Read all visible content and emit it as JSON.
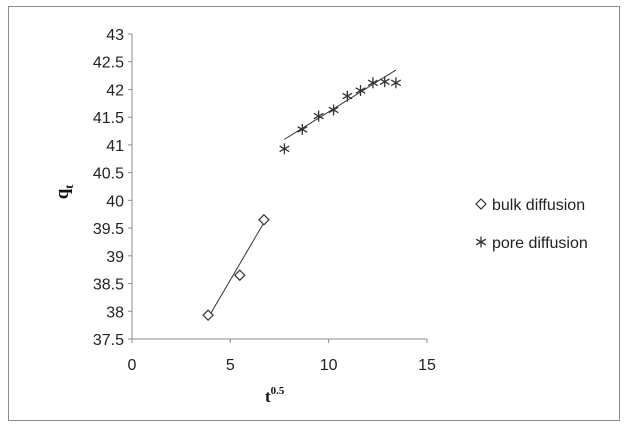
{
  "chart_data": {
    "type": "scatter",
    "xlabel": "t",
    "xlabel_superscript": "0.5",
    "ylabel": "q",
    "ylabel_subscript": "t",
    "xlim": [
      0,
      15
    ],
    "ylim": [
      37.5,
      43
    ],
    "x_ticks": [
      "0",
      "5",
      "10",
      "15"
    ],
    "y_ticks": [
      "37.5",
      "38",
      "38.5",
      "39",
      "39.5",
      "40",
      "40.5",
      "41",
      "41.5",
      "42",
      "42.5",
      "43"
    ],
    "grid": false,
    "legend_position": "right",
    "series": [
      {
        "name": "bulk diffusion",
        "marker": "diamond",
        "x": [
          3.87,
          5.48,
          6.71
        ],
        "y": [
          37.93,
          38.65,
          39.65
        ],
        "trendline": [
          [
            3.87,
            37.88
          ],
          [
            6.71,
            39.6
          ]
        ]
      },
      {
        "name": "pore diffusion",
        "marker": "asterisk",
        "x": [
          7.75,
          8.66,
          9.49,
          10.25,
          10.95,
          11.62,
          12.25,
          12.85,
          13.42
        ],
        "y": [
          40.93,
          41.28,
          41.52,
          41.63,
          41.88,
          41.98,
          42.12,
          42.14,
          42.12
        ],
        "trendline": [
          [
            7.75,
            41.1
          ],
          [
            13.42,
            42.35
          ]
        ]
      }
    ],
    "axis_color": "#8c8c8c",
    "marker_color": "#333333"
  }
}
